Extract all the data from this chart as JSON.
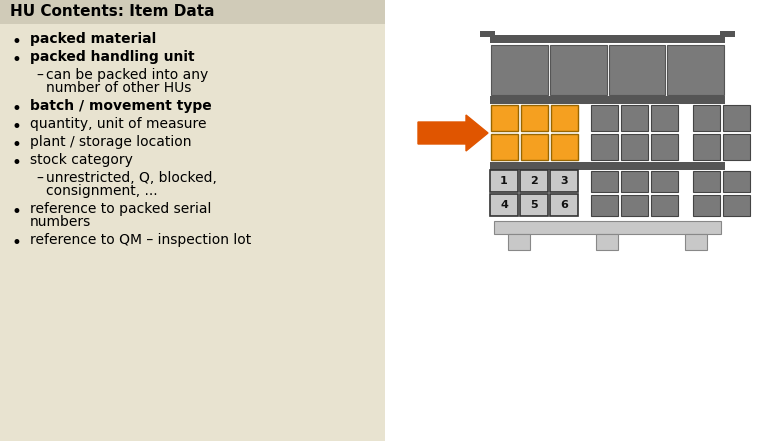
{
  "bg_color": "#f0ece0",
  "left_panel_bg": "#e8e3d0",
  "title_bar_bg": "#d0cbb8",
  "title": "HU Contents: Item Data",
  "title_fontsize": 11,
  "title_fontweight": "bold",
  "bullet_items": [
    {
      "text": "packed material",
      "level": 0,
      "bold": true
    },
    {
      "text": "packed handling unit",
      "level": 0,
      "bold": true
    },
    {
      "text": "can be packed into any\nnumber of other HUs",
      "level": 1,
      "bold": false
    },
    {
      "text": "batch / movement type",
      "level": 0,
      "bold": true
    },
    {
      "text": "quantity, unit of measure",
      "level": 0,
      "bold": false
    },
    {
      "text": "plant / storage location",
      "level": 0,
      "bold": false
    },
    {
      "text": "stock category",
      "level": 0,
      "bold": false
    },
    {
      "text": "unrestricted, Q, blocked,\nconsignment, ...",
      "level": 1,
      "bold": false
    },
    {
      "text": "reference to packed serial\nnumbers",
      "level": 0,
      "bold": false
    },
    {
      "text": "reference to QM – inspection lot",
      "level": 0,
      "bold": false
    }
  ],
  "text_fontsize": 10,
  "text_color": "#000000",
  "arrow_color": "#e05500",
  "pallet_color": "#7a7a7a",
  "pallet_dark": "#555555",
  "pallet_light": "#c8c8c8",
  "orange_color": "#f5a020",
  "numbered_bg": "#c8c8c8",
  "numbered_border": "#333333",
  "right_bg": "#ffffff"
}
